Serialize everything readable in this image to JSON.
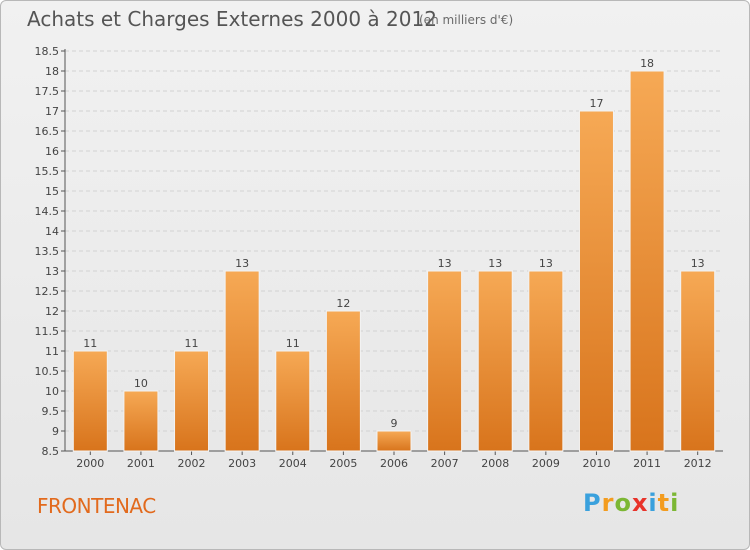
{
  "header": {
    "title": "Achats et Charges Externes 2000 à 2012",
    "subtitle": "(en milliers d'€)"
  },
  "footer": {
    "commune": "FRONTENAC",
    "brand": "Proxiti",
    "brand_letters": [
      "P",
      "r",
      "o",
      "x",
      "i",
      "t",
      "i"
    ],
    "brand_colors": [
      "#3aa1dd",
      "#f39c1f",
      "#7cb734",
      "#e8332a",
      "#3aa1dd",
      "#f39c1f",
      "#7cb734"
    ]
  },
  "colors": {
    "bar_top": "#f6a955",
    "bar_bottom": "#d8741c",
    "commune": "#e26a1d"
  },
  "chart_data": {
    "type": "bar",
    "title": "Achats et Charges Externes 2000 à 2012",
    "subtitle": "(en milliers d'€)",
    "categories": [
      "2000",
      "2001",
      "2002",
      "2003",
      "2004",
      "2005",
      "2006",
      "2007",
      "2008",
      "2009",
      "2010",
      "2011",
      "2012"
    ],
    "values": [
      11,
      10,
      11,
      13,
      11,
      12,
      9,
      13,
      13,
      13,
      17,
      18,
      13
    ],
    "data_labels": [
      "11",
      "10",
      "11",
      "13",
      "11",
      "12",
      "9",
      "13",
      "13",
      "13",
      "17",
      "18",
      "13"
    ],
    "ylim": [
      8.5,
      18.5
    ],
    "yticks": [
      "8.5",
      "9",
      "9.5",
      "10",
      "10.5",
      "11",
      "11.5",
      "12",
      "12.5",
      "13",
      "13.5",
      "14",
      "14.5",
      "15",
      "15.5",
      "16",
      "16.5",
      "17",
      "17.5",
      "18",
      "18.5"
    ],
    "grid": true,
    "xlabel": "",
    "ylabel": ""
  }
}
